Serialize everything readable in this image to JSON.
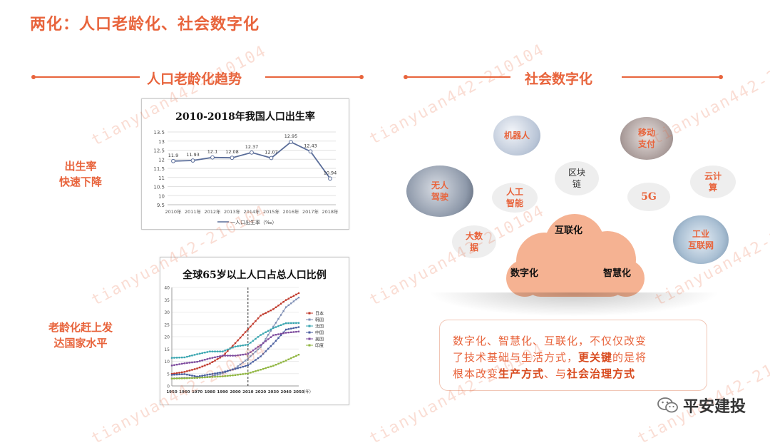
{
  "title": "两化：人口老龄化、社会数字化",
  "left_section": {
    "title": "人口老龄化趋势"
  },
  "right_section": {
    "title": "社会数字化"
  },
  "side_labels": {
    "birth": [
      "出生率",
      "快速下降"
    ],
    "aging": [
      "老龄化赶上发",
      "达国家水平"
    ]
  },
  "chart_data": [
    {
      "type": "line",
      "title": "2010-2018年我国人口出生率",
      "categories": [
        "2010年",
        "2011年",
        "2012年",
        "2013年",
        "2014年",
        "2015年",
        "2016年",
        "2017年",
        "2018年"
      ],
      "series": [
        {
          "name": "一人口出生率（‰）",
          "values": [
            11.9,
            11.93,
            12.1,
            12.08,
            12.37,
            12.07,
            12.95,
            12.43,
            10.94
          ]
        }
      ],
      "data_labels": [
        "11.9",
        "11.93",
        "12.1",
        "12.08",
        "12.37",
        "12.07",
        "12.95",
        "12.43",
        "10.94"
      ],
      "ylim": [
        9.5,
        13.5
      ],
      "yticks": [
        "9.5",
        "10",
        "10.5",
        "11",
        "11.5",
        "12",
        "12.5",
        "13",
        "13.5"
      ],
      "grid": true,
      "legend": "bottom",
      "color": "#5a6d99"
    },
    {
      "type": "line",
      "title": "全球65岁以上人口占总人口比例",
      "x": [
        "1950",
        "1960",
        "1970",
        "1980",
        "1990",
        "2000",
        "2010",
        "2020",
        "2030",
        "2040",
        "2050"
      ],
      "xunit": "（年）",
      "ylim": [
        0,
        40
      ],
      "yticks": [
        "0",
        "5",
        "10",
        "15",
        "20",
        "25",
        "30",
        "35",
        "40"
      ],
      "legend": "right",
      "series": [
        {
          "name": "日本",
          "color": "#c0392b",
          "values": [
            4.9,
            5.7,
            7.1,
            9.1,
            12.1,
            17.4,
            23.0,
            28.6,
            31.2,
            34.9,
            37.7
          ]
        },
        {
          "name": "韩国",
          "color": "#7f8fb5",
          "values": [
            3.0,
            3.3,
            3.3,
            3.8,
            5.1,
            7.2,
            11.1,
            15.8,
            24.1,
            32.0,
            35.9
          ]
        },
        {
          "name": "法国",
          "color": "#3aa6b0",
          "values": [
            11.4,
            11.6,
            12.9,
            14.0,
            14.0,
            16.0,
            16.8,
            20.7,
            23.5,
            25.5,
            25.6
          ]
        },
        {
          "name": "中国",
          "color": "#4a5fa0",
          "values": [
            4.5,
            4.8,
            3.8,
            4.7,
            5.6,
            6.9,
            8.4,
            12.0,
            17.2,
            22.9,
            23.9
          ]
        },
        {
          "name": "美国",
          "color": "#7e4c9e",
          "values": [
            8.3,
            9.2,
            9.8,
            11.2,
            12.3,
            12.3,
            13.0,
            16.6,
            20.6,
            21.6,
            22.1
          ]
        },
        {
          "name": "印度",
          "color": "#8fb53f",
          "values": [
            3.0,
            3.1,
            3.3,
            3.6,
            3.9,
            4.4,
            5.1,
            6.6,
            8.2,
            10.3,
            12.7
          ]
        }
      ],
      "vline_at": "2010"
    }
  ],
  "digital": {
    "bubbles": [
      {
        "label": "机器人",
        "style": "photo"
      },
      {
        "label": "移动\n支付",
        "style": "photo"
      },
      {
        "label": "区块\n链",
        "style": "plain"
      },
      {
        "label": "云计\n算",
        "style": "plain"
      },
      {
        "label": "无人\n驾驶",
        "style": "photo"
      },
      {
        "label": "人工\n智能",
        "style": "plain"
      },
      {
        "label": "5G",
        "style": "plain"
      },
      {
        "label": "工业\n互联网",
        "style": "photo"
      },
      {
        "label": "大数\n据",
        "style": "plain"
      }
    ],
    "cloud": {
      "top": "互联化",
      "left": "数字化",
      "right": "智慧化",
      "color": "#f5b292"
    },
    "description": {
      "line1": "数字化、智慧化、互联化，不仅仅改变",
      "line2a": "了技术基础与生活方式，",
      "line2b": "更关键",
      "line2c": "的是将",
      "line3a": "根本改变",
      "line3b": "生产方式",
      "line3c": "、与",
      "line3d": "社会治理方式"
    }
  },
  "watermark": "tianyuan442-210104",
  "brand": "平安建投",
  "accent": "#e8643c"
}
